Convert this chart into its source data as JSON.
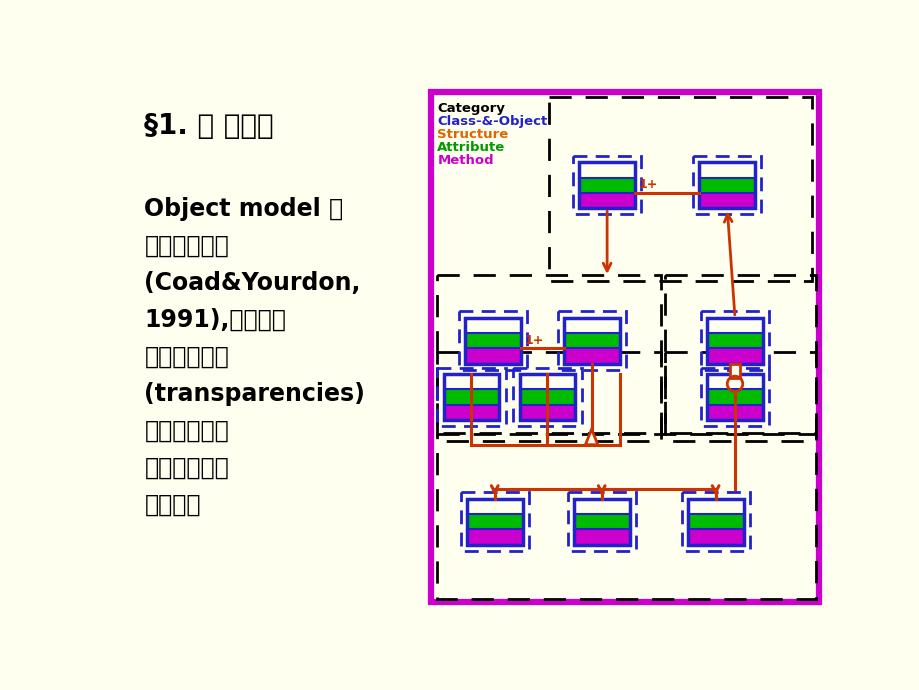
{
  "bg_color": "#FFFFF0",
  "slide_bg": "#FFFFF0",
  "title_text": "§1. 基 本过程",
  "body_line1": "Object model 由",
  "body_line2": "五个层次组成",
  "body_line3": "(Coad&Yourdon,",
  "body_line4": "1991),相当于把",
  "body_line5": "五张透明胶片",
  "body_line6": "(transparencies)",
  "body_line7": "叠在一起，每",
  "body_line8": "一层显示更多",
  "body_line9": "的细节。",
  "legend_category": "Category",
  "legend_class": "Class-&-Object",
  "legend_structure": "Structure",
  "legend_attribute": "Attribute",
  "legend_method": "Method",
  "outer_border_color": "#CC00CC",
  "box_border_color": "#2222CC",
  "box_dash_color": "#2222CC",
  "bar_bg": "#FFFFF0",
  "bar_green": "#00BB00",
  "bar_magenta": "#CC00CC",
  "arrow_color": "#CC3300",
  "black": "#000000",
  "blue": "#2222CC",
  "orange": "#DD6600",
  "green": "#009900",
  "magenta": "#CC00CC"
}
